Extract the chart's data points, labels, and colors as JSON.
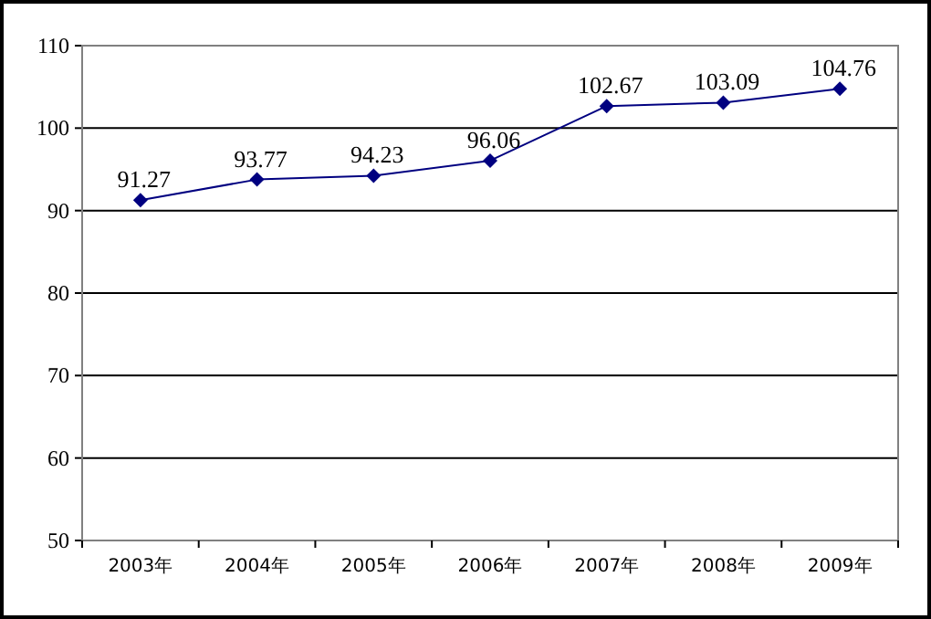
{
  "chart_data": {
    "type": "line",
    "categories": [
      "2003年",
      "2004年",
      "2005年",
      "2006年",
      "2007年",
      "2008年",
      "2009年"
    ],
    "series": [
      {
        "color": "#000080",
        "values": [
          91.27,
          93.77,
          94.23,
          96.06,
          102.67,
          103.09,
          104.76
        ]
      }
    ],
    "ylim": [
      50,
      110
    ],
    "yticks": [
      50,
      60,
      70,
      80,
      90,
      100,
      110
    ],
    "grid": "y",
    "marker": "diamond",
    "line_style": "solid",
    "data_labels": true
  }
}
